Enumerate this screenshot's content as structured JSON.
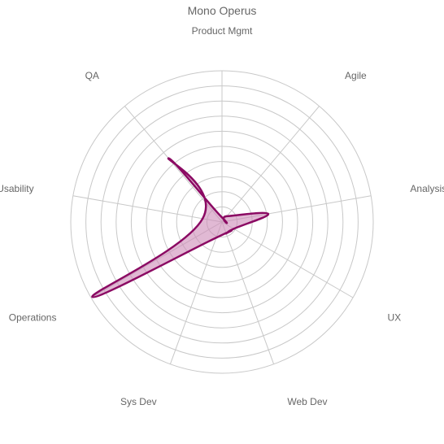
{
  "chart_data": {
    "type": "radar",
    "title": "Mono Operus",
    "categories": [
      "Product Mgmt",
      "Agile",
      "Analysis",
      "UX",
      "Web Dev",
      "Sys Dev",
      "Operations",
      "Usability",
      "QA"
    ],
    "series": [
      {
        "values": [
          0.3,
          0.5,
          3.1,
          0.9,
          0.8,
          1.1,
          9.9,
          1.3,
          5.5
        ]
      }
    ],
    "rmax": 10,
    "rings": 10,
    "grid": true,
    "curved": true,
    "colors": {
      "fill": "#cd8ab7",
      "fill_opacity": 0.6,
      "stroke": "#8b0a63",
      "grid": "#c8c8c8",
      "text": "#666666"
    }
  }
}
